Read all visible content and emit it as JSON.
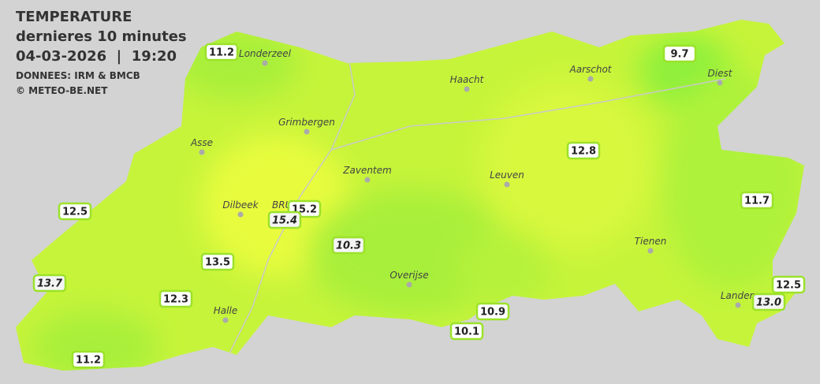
{
  "header": {
    "title": "TEMPERATURE",
    "subtitle": "dernieres 10 minutes",
    "datetime": "04-03-2026  |  19:20",
    "source": "DONNEES: IRM & BMCB",
    "copyright": "© METEO-BE.NET"
  },
  "cities": [
    {
      "name": "Londerzeel"
    },
    {
      "name": "Haacht"
    },
    {
      "name": "Aarschot"
    },
    {
      "name": "Diest"
    },
    {
      "name": "Grimbergen"
    },
    {
      "name": "Asse"
    },
    {
      "name": "Zaventem"
    },
    {
      "name": "Leuven"
    },
    {
      "name": "Dilbeek"
    },
    {
      "name": "BRU"
    },
    {
      "name": "Tienen"
    },
    {
      "name": "Overijse"
    },
    {
      "name": "Halle"
    },
    {
      "name": "Landen"
    }
  ],
  "readings": [
    {
      "value": "11.2"
    },
    {
      "value": "9.7"
    },
    {
      "value": "12.8"
    },
    {
      "value": "11.7"
    },
    {
      "value": "12.5"
    },
    {
      "value": "15.2"
    },
    {
      "value": "15.4"
    },
    {
      "value": "10.3"
    },
    {
      "value": "13.5"
    },
    {
      "value": "13.7"
    },
    {
      "value": "12.3"
    },
    {
      "value": "10.9"
    },
    {
      "value": "10.1"
    },
    {
      "value": "11.2"
    },
    {
      "value": "12.5"
    },
    {
      "value": "13.0"
    }
  ]
}
